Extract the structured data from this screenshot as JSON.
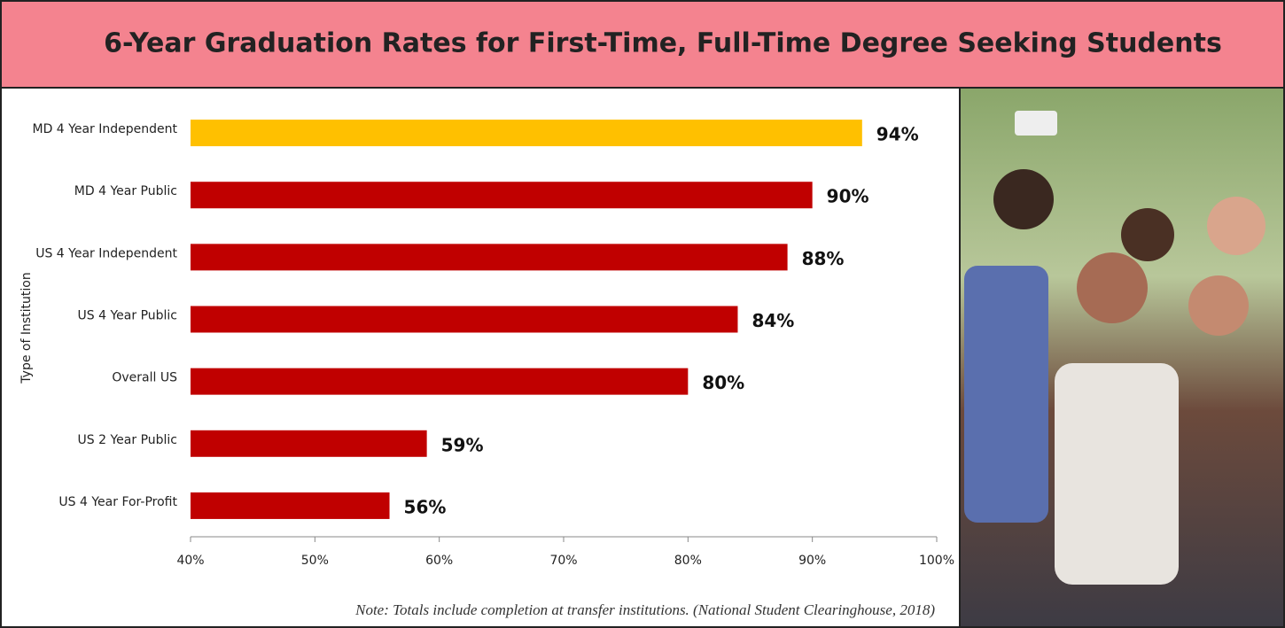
{
  "chart_data": {
    "type": "bar",
    "orientation": "horizontal",
    "title": "6-Year Graduation Rates for First-Time, Full-Time Degree Seeking Students",
    "y_label": "Type of Institution",
    "note": "Note: Totals include completion at transfer institutions. (National Student Clearinghouse, 2018)",
    "categories": [
      "MD 4 Year Independent",
      "MD 4 Year Public",
      "US 4 Year Independent",
      "US 4 Year Public",
      "Overall US",
      "US 2 Year Public",
      "US 4 Year For-Profit"
    ],
    "values": [
      94,
      90,
      88,
      84,
      80,
      59,
      56
    ],
    "value_labels": [
      "94%",
      "90%",
      "88%",
      "84%",
      "80%",
      "59%",
      "56%"
    ],
    "colors": [
      "#ffc000",
      "#c00000",
      "#c00000",
      "#c00000",
      "#c00000",
      "#c00000",
      "#c00000"
    ],
    "xlim": [
      40,
      100
    ],
    "xticks": [
      {
        "value": 40,
        "label": "40%"
      },
      {
        "value": 50,
        "label": "50%"
      },
      {
        "value": 60,
        "label": "60%"
      },
      {
        "value": 70,
        "label": "70%"
      },
      {
        "value": 80,
        "label": "80%"
      },
      {
        "value": 90,
        "label": "90%"
      },
      {
        "value": 100,
        "label": "100%"
      }
    ]
  }
}
